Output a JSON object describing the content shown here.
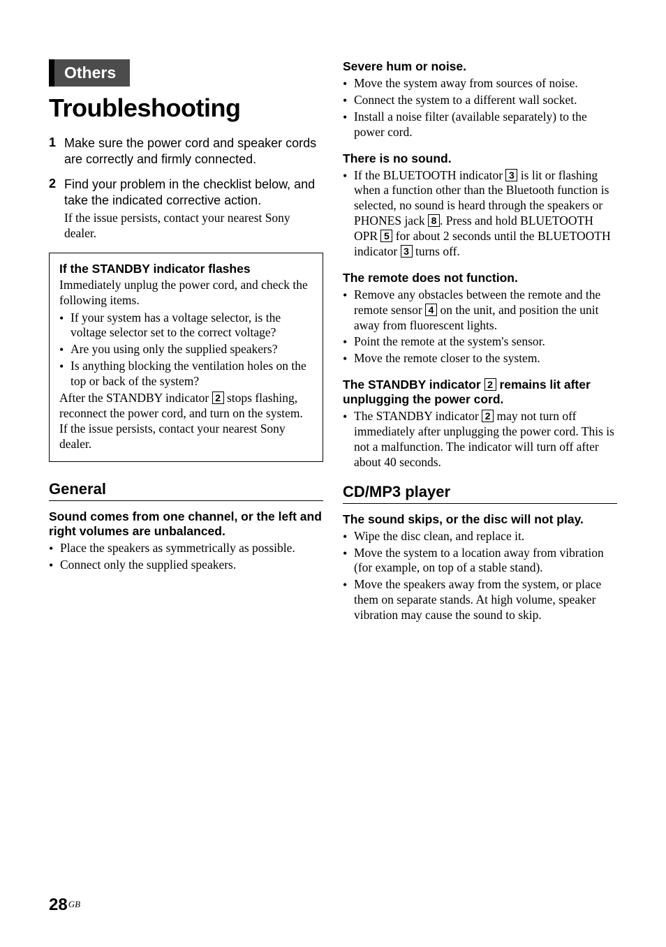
{
  "section_tab": "Others",
  "main_title": "Troubleshooting",
  "steps": [
    {
      "num": "1",
      "text": "Make sure the power cord and speaker cords are correctly and firmly connected."
    },
    {
      "num": "2",
      "text": "Find your problem in the checklist below, and take the indicated corrective action.",
      "sub": "If the issue persists, contact your nearest Sony dealer."
    }
  ],
  "inset": {
    "title": "If the STANDBY indicator flashes",
    "intro": "Immediately unplug the power cord, and check the following items.",
    "bullets": [
      "If your system has a voltage selector, is the voltage selector set to the correct voltage?",
      "Are you using only the supplied speakers?",
      "Is anything blocking the ventilation holes on the top or back of the system?"
    ],
    "after_pre": "After the STANDBY indicator ",
    "after_box": "2",
    "after_post": " stops flashing, reconnect the power cord, and turn on the system. If the issue persists, contact your nearest Sony dealer."
  },
  "general": {
    "heading": "General",
    "issues": [
      {
        "title": "Sound comes from one channel, or the left and right volumes are unbalanced.",
        "bullets": [
          "Place the speakers as symmetrically as possible.",
          "Connect only the supplied speakers."
        ]
      }
    ]
  },
  "right_issues": [
    {
      "title": "Severe hum or noise.",
      "bullets": [
        "Move the system away from sources of noise.",
        "Connect the system to a different wall socket.",
        "Install a noise filter (available separately) to the power cord."
      ]
    }
  ],
  "nosound": {
    "title": "There is no sound.",
    "p1": "If the BLUETOOTH indicator ",
    "b1": "3",
    "p2": " is lit or flashing when a function other than the Bluetooth function is selected, no sound is heard through the speakers or PHONES jack ",
    "b2": "8",
    "p3": ". Press and hold BLUETOOTH OPR ",
    "b3": "5",
    "p4": " for about 2 seconds until the BLUETOOTH indicator ",
    "b4": "3",
    "p5": " turns off."
  },
  "remote": {
    "title": "The remote does not function.",
    "li1_pre": "Remove any obstacles between the remote and the remote sensor ",
    "li1_box": "4",
    "li1_post": " on the unit, and position the unit away from fluorescent lights.",
    "li2": "Point the remote at the system's sensor.",
    "li3": "Move the remote closer to the system."
  },
  "standby": {
    "title_pre": "The STANDBY indicator ",
    "title_box": "2",
    "title_post": " remains lit after unplugging the power cord.",
    "li_pre": "The STANDBY indicator ",
    "li_box": "2",
    "li_post": " may not turn off immediately after unplugging the power cord. This is not a malfunction. The indicator will turn off after about 40 seconds."
  },
  "cdmp3": {
    "heading": "CD/MP3 player",
    "issue_title": "The sound skips, or the disc will not play.",
    "bullets": [
      "Wipe the disc clean, and replace it.",
      "Move the system to a location away from vibration (for example, on top of a stable stand).",
      "Move the speakers away from the system, or place them on separate stands. At high volume, speaker vibration may cause the sound to skip."
    ]
  },
  "page_number": "28",
  "page_region": "GB"
}
